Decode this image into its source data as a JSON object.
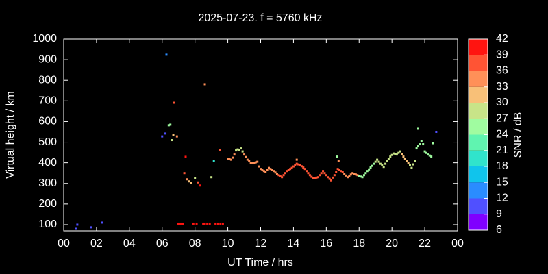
{
  "chart_data": {
    "type": "scatter",
    "title": "2025-07-23. f = 5760 kHz",
    "xlabel": "UT Time / hrs",
    "ylabel": "Virtual height / km",
    "colorbar_label": "SNR / dB",
    "xlim": [
      0,
      24
    ],
    "ylim": [
      70,
      1000
    ],
    "xticks": [
      {
        "value": 0,
        "label": "00"
      },
      {
        "value": 2,
        "label": "02"
      },
      {
        "value": 4,
        "label": "04"
      },
      {
        "value": 6,
        "label": "06"
      },
      {
        "value": 8,
        "label": "08"
      },
      10,
      12,
      14,
      16,
      18,
      20,
      22,
      {
        "value": 24,
        "label": "00"
      }
    ],
    "yticks": [
      100,
      200,
      300,
      400,
      500,
      600,
      700,
      800,
      900,
      1000
    ],
    "clim": [
      6,
      42
    ],
    "cticks": [
      6,
      9,
      12,
      15,
      18,
      21,
      24,
      27,
      30,
      33,
      36,
      39,
      42
    ],
    "colormap": [
      "#8000ff",
      "#5050ff",
      "#2a8cff",
      "#10c4ec",
      "#30e4cc",
      "#60f4b0",
      "#a0fca0",
      "#c8e488",
      "#f8c078",
      "#ff9058",
      "#ff5434",
      "#ff1410"
    ],
    "points": [
      [
        0.75,
        80,
        10
      ],
      [
        0.83,
        100,
        10
      ],
      [
        1.67,
        87,
        11
      ],
      [
        2.34,
        110,
        10
      ],
      [
        6.0,
        528,
        10
      ],
      [
        6.2,
        542,
        10
      ],
      [
        6.26,
        924,
        13
      ],
      [
        6.4,
        582,
        24
      ],
      [
        6.5,
        585,
        24
      ],
      [
        6.6,
        510,
        28
      ],
      [
        6.68,
        535,
        32
      ],
      [
        6.72,
        691,
        37
      ],
      [
        6.9,
        528,
        33
      ],
      [
        6.95,
        105,
        40
      ],
      [
        7.05,
        105,
        40
      ],
      [
        7.15,
        105,
        40
      ],
      [
        7.25,
        105,
        40
      ],
      [
        7.35,
        350,
        37
      ],
      [
        7.43,
        429,
        40
      ],
      [
        7.5,
        320,
        33
      ],
      [
        7.65,
        310,
        31
      ],
      [
        7.75,
        303,
        31
      ],
      [
        7.9,
        105,
        40
      ],
      [
        8.0,
        326,
        27
      ],
      [
        8.1,
        105,
        40
      ],
      [
        8.2,
        305,
        38
      ],
      [
        8.3,
        290,
        40
      ],
      [
        8.5,
        105,
        40
      ],
      [
        8.6,
        105,
        40
      ],
      [
        8.6,
        781,
        35
      ],
      [
        8.75,
        105,
        40
      ],
      [
        8.9,
        105,
        40
      ],
      [
        9.0,
        330,
        27
      ],
      [
        9.15,
        409,
        19
      ],
      [
        9.25,
        105,
        40
      ],
      [
        9.4,
        105,
        40
      ],
      [
        9.5,
        462,
        37
      ],
      [
        9.55,
        105,
        40
      ],
      [
        9.7,
        105,
        40
      ],
      [
        10.0,
        420,
        34
      ],
      [
        10.1,
        418,
        34
      ],
      [
        10.2,
        415,
        34
      ],
      [
        10.3,
        425,
        34
      ],
      [
        10.4,
        440,
        34
      ],
      [
        10.5,
        460,
        27
      ],
      [
        10.6,
        465,
        27
      ],
      [
        10.7,
        462,
        27
      ],
      [
        10.8,
        470,
        27
      ],
      [
        10.9,
        455,
        27
      ],
      [
        11.0,
        440,
        33
      ],
      [
        11.1,
        428,
        33
      ],
      [
        11.2,
        415,
        33
      ],
      [
        11.3,
        408,
        33
      ],
      [
        11.4,
        400,
        33
      ],
      [
        11.5,
        398,
        33
      ],
      [
        11.6,
        400,
        33
      ],
      [
        11.7,
        402,
        33
      ],
      [
        11.8,
        405,
        33
      ],
      [
        11.9,
        382,
        35
      ],
      [
        12.0,
        370,
        35
      ],
      [
        12.1,
        365,
        35
      ],
      [
        12.2,
        360,
        35
      ],
      [
        12.3,
        355,
        35
      ],
      [
        12.4,
        365,
        35
      ],
      [
        12.5,
        375,
        35
      ],
      [
        12.6,
        370,
        35
      ],
      [
        12.7,
        365,
        35
      ],
      [
        12.8,
        360,
        35
      ],
      [
        12.9,
        353,
        35
      ],
      [
        13.0,
        347,
        35
      ],
      [
        13.1,
        340,
        37
      ],
      [
        13.2,
        335,
        37
      ],
      [
        13.3,
        330,
        37
      ],
      [
        13.4,
        340,
        37
      ],
      [
        13.5,
        350,
        37
      ],
      [
        13.6,
        360,
        37
      ],
      [
        13.7,
        365,
        37
      ],
      [
        13.8,
        370,
        37
      ],
      [
        13.9,
        375,
        37
      ],
      [
        14.0,
        382,
        37
      ],
      [
        14.1,
        388,
        37
      ],
      [
        14.2,
        395,
        38
      ],
      [
        14.3,
        392,
        38
      ],
      [
        14.4,
        390,
        38
      ],
      [
        14.5,
        383,
        38
      ],
      [
        14.6,
        377,
        38
      ],
      [
        14.7,
        370,
        38
      ],
      [
        14.8,
        360,
        38
      ],
      [
        14.9,
        350,
        38
      ],
      [
        15.0,
        340,
        38
      ],
      [
        15.1,
        332,
        38
      ],
      [
        15.2,
        325,
        38
      ],
      [
        15.3,
        327,
        38
      ],
      [
        15.4,
        328,
        38
      ],
      [
        15.5,
        330,
        38
      ],
      [
        15.6,
        340,
        38
      ],
      [
        15.7,
        350,
        38
      ],
      [
        15.8,
        360,
        38
      ],
      [
        15.9,
        350,
        38
      ],
      [
        16.0,
        340,
        38
      ],
      [
        16.1,
        330,
        38
      ],
      [
        16.2,
        322,
        38
      ],
      [
        16.3,
        315,
        38
      ],
      [
        16.4,
        328,
        38
      ],
      [
        16.5,
        340,
        38
      ],
      [
        16.6,
        355,
        38
      ],
      [
        16.7,
        370,
        38
      ],
      [
        16.8,
        365,
        38
      ],
      [
        16.9,
        360,
        38
      ],
      [
        17.0,
        355,
        38
      ],
      [
        17.1,
        347,
        34
      ],
      [
        17.2,
        338,
        34
      ],
      [
        17.3,
        330,
        34
      ],
      [
        17.4,
        337,
        34
      ],
      [
        17.5,
        343,
        34
      ],
      [
        17.6,
        350,
        34
      ],
      [
        17.7,
        347,
        34
      ],
      [
        17.8,
        343,
        34
      ],
      [
        17.9,
        340,
        34
      ],
      [
        18.0,
        337,
        26
      ],
      [
        18.1,
        333,
        26
      ],
      [
        18.2,
        330,
        26
      ],
      [
        18.3,
        340,
        25
      ],
      [
        18.4,
        350,
        25
      ],
      [
        18.5,
        360,
        25
      ],
      [
        18.6,
        368,
        25
      ],
      [
        18.7,
        377,
        25
      ],
      [
        18.8,
        385,
        25
      ],
      [
        18.9,
        395,
        25
      ],
      [
        19.0,
        405,
        29
      ],
      [
        19.1,
        415,
        29
      ],
      [
        19.2,
        405,
        29
      ],
      [
        19.3,
        395,
        29
      ],
      [
        19.4,
        388,
        29
      ],
      [
        19.5,
        380,
        29
      ],
      [
        19.6,
        395,
        29
      ],
      [
        19.7,
        410,
        29
      ],
      [
        19.8,
        420,
        29
      ],
      [
        19.9,
        430,
        29
      ],
      [
        20.0,
        438,
        29
      ],
      [
        20.1,
        445,
        29
      ],
      [
        20.2,
        442,
        29
      ],
      [
        20.3,
        440,
        29
      ],
      [
        20.4,
        448,
        29
      ],
      [
        20.5,
        455,
        29
      ],
      [
        20.6,
        443,
        31
      ],
      [
        20.7,
        430,
        31
      ],
      [
        20.8,
        420,
        31
      ],
      [
        20.9,
        410,
        31
      ],
      [
        21.0,
        400,
        31
      ],
      [
        21.1,
        388,
        27
      ],
      [
        21.2,
        375,
        27
      ],
      [
        21.3,
        392,
        27
      ],
      [
        21.4,
        410,
        27
      ],
      [
        21.5,
        470,
        24
      ],
      [
        21.6,
        480,
        24
      ],
      [
        21.7,
        490,
        24
      ],
      [
        21.8,
        505,
        24
      ],
      [
        21.9,
        490,
        24
      ],
      [
        22.0,
        455,
        24
      ],
      [
        22.1,
        448,
        24
      ],
      [
        22.2,
        440,
        24
      ],
      [
        22.3,
        435,
        24
      ],
      [
        22.4,
        430,
        24
      ],
      [
        14.2,
        415,
        34
      ],
      [
        16.65,
        430,
        24
      ],
      [
        16.75,
        410,
        33
      ],
      [
        21.6,
        565,
        24
      ],
      [
        22.5,
        495,
        24
      ],
      [
        22.7,
        550,
        10
      ]
    ]
  }
}
